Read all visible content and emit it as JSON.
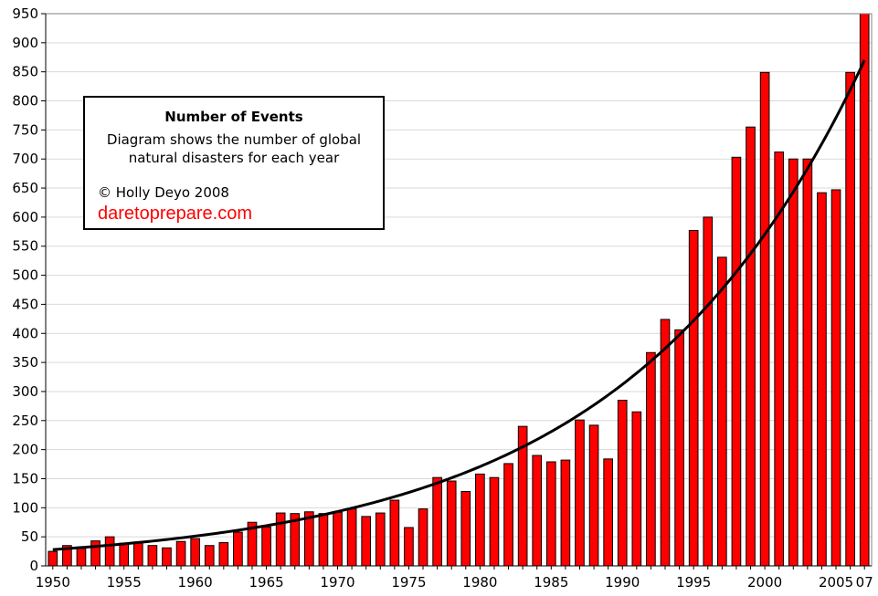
{
  "chart_data": {
    "type": "bar",
    "categories": [
      "1950",
      "1951",
      "1952",
      "1953",
      "1954",
      "1955",
      "1956",
      "1957",
      "1958",
      "1959",
      "1960",
      "1961",
      "1962",
      "1963",
      "1964",
      "1965",
      "1966",
      "1967",
      "1968",
      "1969",
      "1970",
      "1971",
      "1972",
      "1973",
      "1974",
      "1975",
      "1976",
      "1977",
      "1978",
      "1979",
      "1980",
      "1981",
      "1982",
      "1983",
      "1984",
      "1985",
      "1986",
      "1987",
      "1988",
      "1989",
      "1990",
      "1991",
      "1992",
      "1993",
      "1994",
      "1995",
      "1996",
      "1997",
      "1998",
      "1999",
      "2000",
      "2001",
      "2002",
      "2003",
      "2004",
      "2005",
      "2006",
      "2007"
    ],
    "values": [
      25,
      35,
      30,
      43,
      50,
      39,
      41,
      35,
      31,
      42,
      47,
      35,
      40,
      58,
      75,
      67,
      91,
      90,
      93,
      90,
      92,
      98,
      85,
      91,
      113,
      66,
      98,
      152,
      146,
      128,
      158,
      152,
      176,
      240,
      190,
      179,
      182,
      251,
      242,
      184,
      285,
      265,
      367,
      424,
      406,
      577,
      600,
      531,
      703,
      755,
      849,
      712,
      700,
      700,
      642,
      647,
      849,
      950
    ],
    "trend": {
      "type": "exponential",
      "start_value": 28,
      "end_value": 870
    },
    "x_tick_labels": [
      {
        "at": "1950",
        "label": "1950"
      },
      {
        "at": "1955",
        "label": "1955"
      },
      {
        "at": "1960",
        "label": "1960"
      },
      {
        "at": "1965",
        "label": "1965"
      },
      {
        "at": "1970",
        "label": "1970"
      },
      {
        "at": "1975",
        "label": "1975"
      },
      {
        "at": "1980",
        "label": "1980"
      },
      {
        "at": "1985",
        "label": "1985"
      },
      {
        "at": "1990",
        "label": "1990"
      },
      {
        "at": "1995",
        "label": "1995"
      },
      {
        "at": "2000",
        "label": "2000"
      },
      {
        "at": "2005",
        "label": "2005"
      },
      {
        "at": "2007",
        "label": "07"
      }
    ],
    "y_ticks": [
      0,
      50,
      100,
      150,
      200,
      250,
      300,
      350,
      400,
      450,
      500,
      550,
      600,
      650,
      700,
      750,
      800,
      850,
      900,
      950
    ],
    "ylim": [
      0,
      950
    ],
    "grid": true,
    "legend_position": "top-left",
    "bar_color": "#ff0000",
    "trend_color": "#000000"
  },
  "legend": {
    "title": "Number of Events",
    "line1": "Diagram shows the number of global",
    "line2": "natural disasters for each year",
    "copyright": "© Holly Deyo 2008",
    "url": "daretoprepare.com",
    "url_color": "#ff0000"
  }
}
